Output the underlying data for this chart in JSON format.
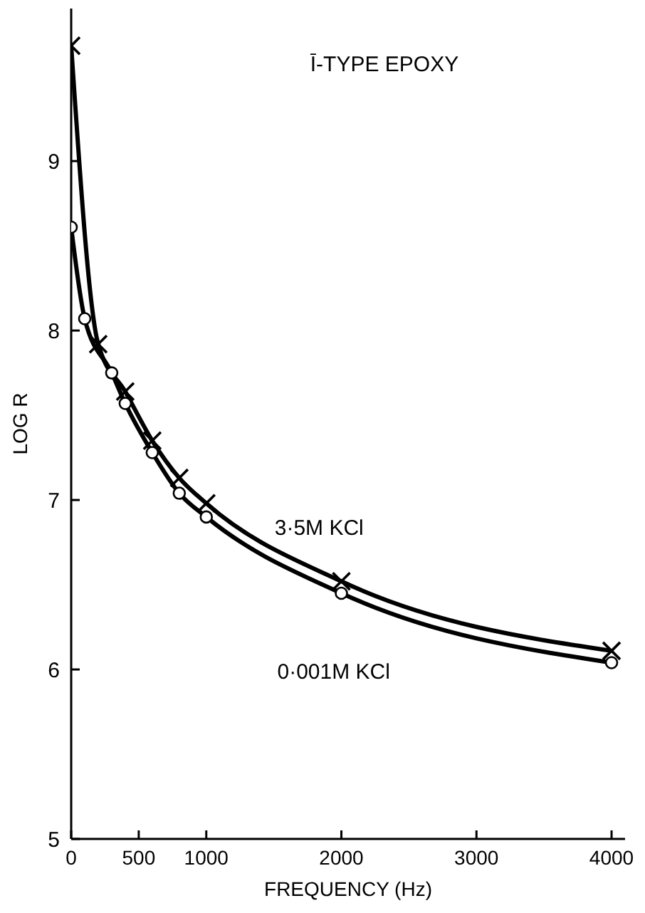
{
  "chart_data": {
    "type": "line",
    "title": "Ī-TYPE EPOXY",
    "xlabel": "FREQUENCY (Hz)",
    "ylabel": "LOG R",
    "xlim": [
      0,
      4100
    ],
    "xticks": [
      0,
      500,
      1000,
      2000,
      3000,
      4000
    ],
    "ylim": [
      5,
      9.9
    ],
    "yticks": [
      5,
      6,
      7,
      8,
      9
    ],
    "grid": false,
    "legend": false,
    "line_style": "solid",
    "series": [
      {
        "name": "3·5M KCl",
        "color": "#000000",
        "marker": "cross",
        "x": [
          0,
          200,
          400,
          600,
          800,
          1000,
          2000,
          4000
        ],
        "values": [
          9.68,
          7.92,
          7.64,
          7.35,
          7.13,
          6.98,
          6.52,
          6.11
        ]
      },
      {
        "name": "0·001M KCl",
        "color": "#000000",
        "marker": "circle",
        "x": [
          0,
          100,
          300,
          400,
          600,
          800,
          1000,
          2000,
          4000
        ],
        "values": [
          8.61,
          8.07,
          7.75,
          7.57,
          7.28,
          7.04,
          6.9,
          6.45,
          6.04
        ]
      }
    ]
  }
}
